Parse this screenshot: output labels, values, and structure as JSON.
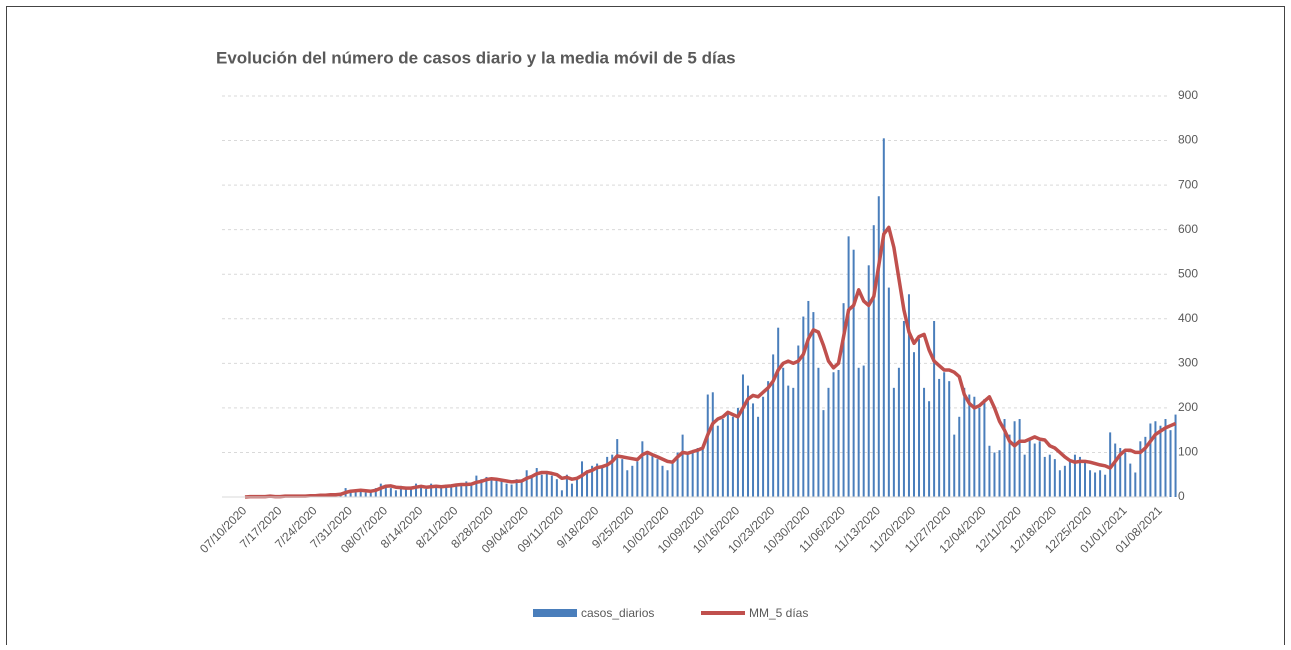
{
  "chart_data": {
    "type": "bar-line",
    "title": "Evolución del número de casos diario y la media móvil de 5 días",
    "categories": [
      "07/10/2020",
      null,
      null,
      null,
      null,
      null,
      null,
      "7/17/2020",
      null,
      null,
      null,
      null,
      null,
      null,
      "7/24/2020",
      null,
      null,
      null,
      null,
      null,
      null,
      "7/31/2020",
      null,
      null,
      null,
      null,
      null,
      null,
      "08/07/2020",
      null,
      null,
      null,
      null,
      null,
      null,
      "8/14/2020",
      null,
      null,
      null,
      null,
      null,
      null,
      "8/21/2020",
      null,
      null,
      null,
      null,
      null,
      null,
      "8/28/2020",
      null,
      null,
      null,
      null,
      null,
      null,
      "09/04/2020",
      null,
      null,
      null,
      null,
      null,
      null,
      "09/11/2020",
      null,
      null,
      null,
      null,
      null,
      null,
      "9/18/2020",
      null,
      null,
      null,
      null,
      null,
      null,
      "9/25/2020",
      null,
      null,
      null,
      null,
      null,
      null,
      "10/02/2020",
      null,
      null,
      null,
      null,
      null,
      null,
      "10/09/2020",
      null,
      null,
      null,
      null,
      null,
      null,
      "10/16/2020",
      null,
      null,
      null,
      null,
      null,
      null,
      "10/23/2020",
      null,
      null,
      null,
      null,
      null,
      null,
      "10/30/2020",
      null,
      null,
      null,
      null,
      null,
      null,
      "11/06/2020",
      null,
      null,
      null,
      null,
      null,
      null,
      "11/13/2020",
      null,
      null,
      null,
      null,
      null,
      null,
      "11/20/2020",
      null,
      null,
      null,
      null,
      null,
      null,
      "11/27/2020",
      null,
      null,
      null,
      null,
      null,
      null,
      "12/04/2020",
      null,
      null,
      null,
      null,
      null,
      null,
      "12/11/2020",
      null,
      null,
      null,
      null,
      null,
      null,
      "12/18/2020",
      null,
      null,
      null,
      null,
      null,
      null,
      "12/25/2020",
      null,
      null,
      null,
      null,
      null,
      null,
      "01/01/2021",
      null,
      null,
      null,
      null,
      null,
      null,
      "01/08/2021",
      null,
      null,
      null
    ],
    "series": [
      {
        "name": "casos_diarios",
        "type": "bar",
        "color": "#4a7ebb",
        "values": [
          1,
          2,
          0,
          1,
          3,
          2,
          1,
          2,
          1,
          3,
          2,
          1,
          4,
          3,
          5,
          3,
          4,
          8,
          6,
          10,
          20,
          15,
          12,
          18,
          10,
          14,
          20,
          30,
          28,
          20,
          15,
          25,
          18,
          22,
          30,
          22,
          18,
          30,
          25,
          20,
          28,
          24,
          30,
          25,
          35,
          28,
          48,
          40,
          45,
          38,
          42,
          35,
          30,
          28,
          40,
          35,
          60,
          45,
          65,
          50,
          55,
          48,
          40,
          15,
          50,
          30,
          45,
          80,
          60,
          70,
          75,
          65,
          90,
          95,
          130,
          85,
          60,
          70,
          80,
          125,
          100,
          95,
          85,
          70,
          60,
          75,
          100,
          140,
          95,
          100,
          110,
          110,
          230,
          235,
          160,
          175,
          190,
          180,
          200,
          275,
          250,
          210,
          180,
          225,
          260,
          320,
          380,
          290,
          250,
          245,
          340,
          405,
          440,
          415,
          290,
          195,
          245,
          280,
          285,
          435,
          585,
          555,
          290,
          295,
          520,
          610,
          675,
          805,
          470,
          245,
          290,
          395,
          455,
          325,
          355,
          245,
          215,
          395,
          265,
          280,
          260,
          140,
          180,
          245,
          230,
          225,
          200,
          220,
          115,
          100,
          105,
          175,
          140,
          170,
          175,
          95,
          130,
          120,
          125,
          90,
          95,
          85,
          60,
          70,
          80,
          95,
          90,
          80,
          60,
          55,
          60,
          50,
          145,
          120,
          110,
          100,
          75,
          55,
          125,
          135,
          165,
          170,
          160,
          175,
          150,
          185
        ]
      },
      {
        "name": "MM_5 días",
        "type": "line",
        "color": "#c0504d",
        "values": [
          0,
          1,
          1,
          1,
          1,
          2,
          1,
          1,
          2,
          2,
          2,
          2,
          2,
          3,
          3,
          4,
          4,
          5,
          5,
          6,
          10,
          13,
          14,
          15,
          14,
          13,
          15,
          20,
          24,
          25,
          22,
          21,
          20,
          20,
          22,
          24,
          22,
          23,
          24,
          23,
          24,
          25,
          27,
          28,
          28,
          29,
          33,
          35,
          39,
          41,
          40,
          38,
          36,
          34,
          35,
          36,
          42,
          46,
          52,
          55,
          55,
          53,
          50,
          42,
          44,
          40,
          42,
          48,
          56,
          60,
          66,
          68,
          72,
          80,
          92,
          90,
          88,
          86,
          84,
          95,
          100,
          95,
          90,
          85,
          80,
          78,
          90,
          100,
          98,
          102,
          105,
          110,
          140,
          165,
          175,
          180,
          190,
          185,
          180,
          200,
          220,
          228,
          225,
          235,
          245,
          260,
          285,
          300,
          305,
          300,
          305,
          320,
          355,
          375,
          370,
          340,
          305,
          290,
          300,
          360,
          420,
          430,
          465,
          440,
          430,
          450,
          520,
          590,
          605,
          560,
          490,
          420,
          370,
          345,
          360,
          365,
          330,
          305,
          295,
          285,
          285,
          280,
          270,
          230,
          210,
          200,
          205,
          215,
          225,
          200,
          170,
          150,
          125,
          115,
          125,
          125,
          130,
          135,
          130,
          128,
          115,
          110,
          100,
          90,
          82,
          78,
          80,
          80,
          78,
          75,
          72,
          70,
          65,
          80,
          95,
          105,
          105,
          100,
          100,
          110,
          125,
          140,
          148,
          155,
          160,
          165
        ]
      }
    ],
    "ylim": [
      0,
      900
    ],
    "yticks": [
      0,
      100,
      200,
      300,
      400,
      500,
      600,
      700,
      800,
      900
    ],
    "grid": true
  }
}
